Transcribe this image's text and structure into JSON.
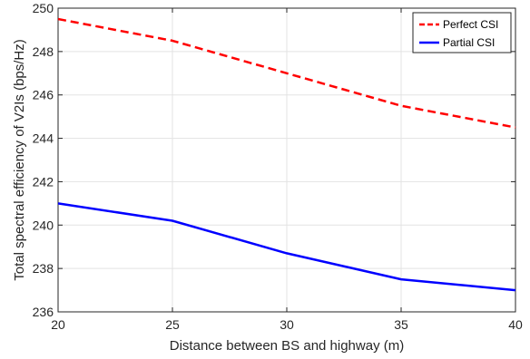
{
  "chart_data": {
    "type": "line",
    "title": "",
    "xlabel": "Distance between BS and highway (m)",
    "ylabel": "Total spectral efficiency of V2Is (bps/Hz)",
    "x": [
      20,
      25,
      30,
      35,
      40
    ],
    "xlim": [
      20,
      40
    ],
    "ylim": [
      236,
      250
    ],
    "xticks": [
      20,
      25,
      30,
      35,
      40
    ],
    "yticks": [
      236,
      238,
      240,
      242,
      244,
      246,
      248,
      250
    ],
    "grid": true,
    "legend_position": "top-right",
    "series": [
      {
        "name": "Perfect CSI",
        "values": [
          249.5,
          248.5,
          247.0,
          245.5,
          244.5
        ],
        "color": "#ff0000",
        "style": "dashed"
      },
      {
        "name": "Partial CSI",
        "values": [
          241.0,
          240.2,
          238.7,
          237.5,
          237.0
        ],
        "color": "#0000ff",
        "style": "solid"
      }
    ]
  }
}
